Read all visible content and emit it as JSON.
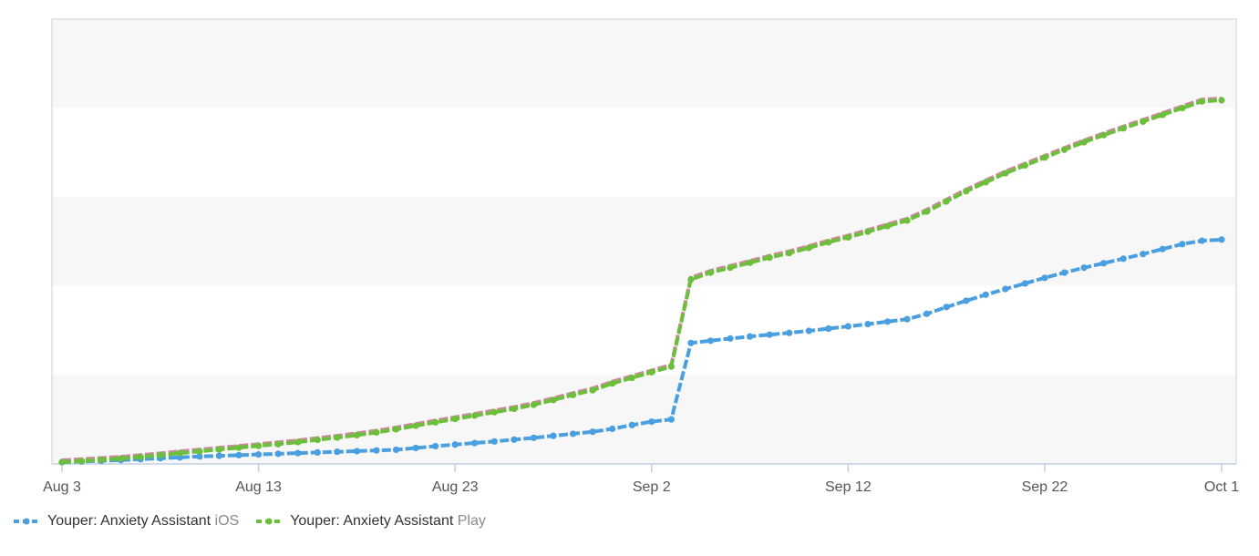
{
  "colors": {
    "ios": "#4a9fe0",
    "play": "#6cbf3a",
    "play_underlay": "#c98a9a",
    "band": "#f7f7f7",
    "axis": "#c0d0e0",
    "frame": "#cfcfcf"
  },
  "legend": [
    {
      "app": "Youper: Anxiety Assistant",
      "store": "iOS"
    },
    {
      "app": "Youper: Anxiety Assistant",
      "store": "Play"
    }
  ],
  "chart_data": {
    "type": "line",
    "title": "",
    "xlabel": "",
    "ylabel": "",
    "x_start": "Aug 3",
    "x_end": "Oct 1",
    "x_ticks": [
      "Aug 3",
      "Aug 13",
      "Aug 23",
      "Sep 2",
      "Sep 12",
      "Sep 22",
      "Oct 1"
    ],
    "y_ticks": [],
    "grid": true,
    "legend_position": "bottom-left",
    "series": [
      {
        "name": "Youper: Anxiety Assistant iOS",
        "key": "ios",
        "values": [
          0,
          0.3,
          0.6,
          0.9,
          1.3,
          1.7,
          2.1,
          2.5,
          2.8,
          3.1,
          3.4,
          3.7,
          4.0,
          4.3,
          4.6,
          4.9,
          5.2,
          5.5,
          6.3,
          7.1,
          7.8,
          8.5,
          9.2,
          10.0,
          10.8,
          11.7,
          12.6,
          13.5,
          14.8,
          16.5,
          18.0,
          19.0,
          53.0,
          54.0,
          55.0,
          55.9,
          56.7,
          57.5,
          58.4,
          59.4,
          60.4,
          61.4,
          62.5,
          63.6,
          66.0,
          69.0,
          71.8,
          74.5,
          77.0,
          79.5,
          82.0,
          84.3,
          86.5,
          88.5,
          90.5,
          92.6,
          94.8,
          97.0,
          98.5,
          99.0
        ]
      },
      {
        "name": "Youper: Anxiety Assistant Play",
        "key": "play",
        "values": [
          0,
          0.5,
          1.0,
          1.6,
          2.3,
          3.1,
          4.0,
          4.8,
          5.6,
          6.4,
          7.2,
          8.0,
          8.9,
          9.9,
          10.9,
          12.0,
          13.2,
          14.6,
          16.2,
          17.7,
          19.2,
          20.7,
          22.2,
          23.7,
          25.5,
          27.6,
          29.9,
          32.0,
          35.0,
          37.5,
          40.0,
          42.5,
          81.3,
          84.3,
          86.5,
          88.7,
          91.0,
          93.0,
          95.3,
          97.8,
          100.0,
          102.5,
          105.0,
          107.5,
          111.5,
          116.0,
          120.5,
          124.5,
          128.5,
          132.0,
          135.5,
          139.0,
          142.3,
          145.5,
          148.5,
          151.5,
          154.5,
          157.5,
          160.5,
          161.0
        ]
      }
    ]
  }
}
